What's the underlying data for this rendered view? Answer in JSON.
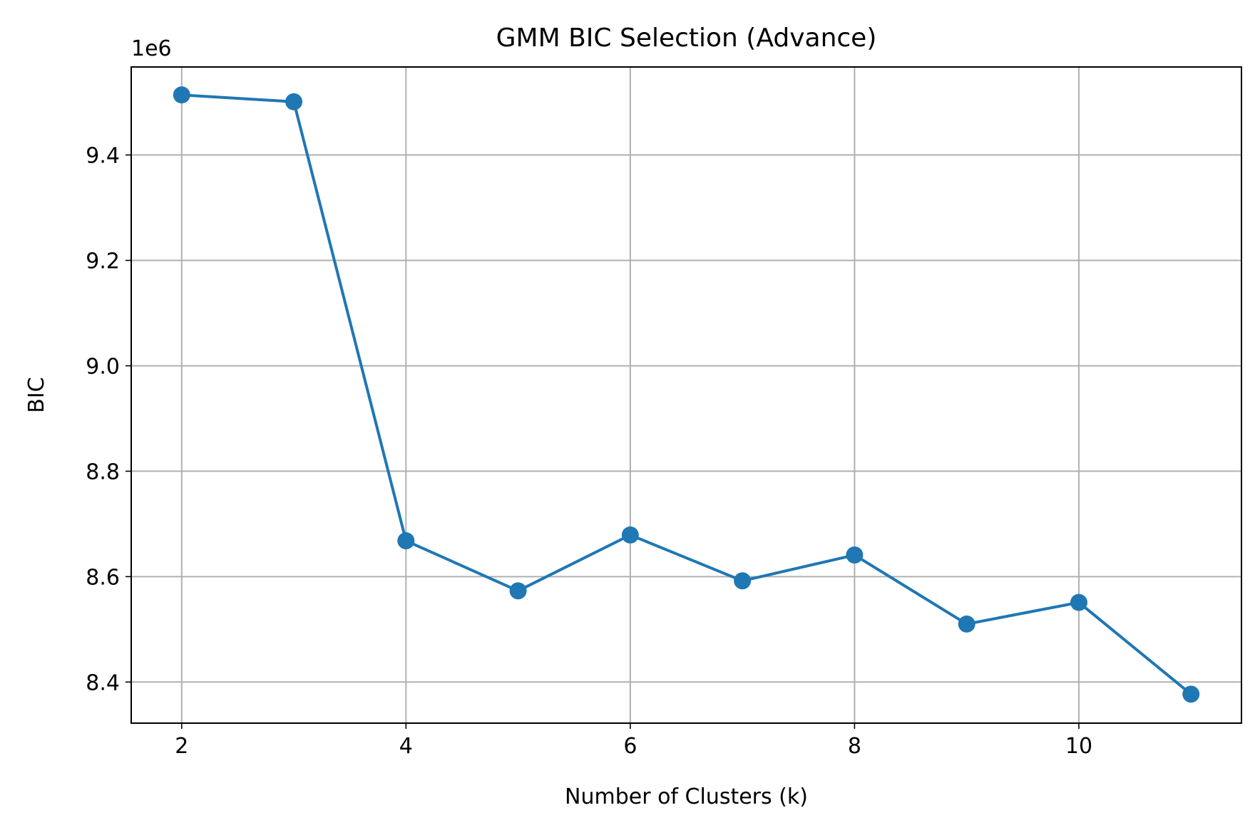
{
  "chart_data": {
    "type": "line",
    "title": "GMM BIC Selection (Advance)",
    "xlabel": "Number of Clusters (k)",
    "ylabel": "BIC",
    "y_offset_label": "1e6",
    "x_ticks": [
      2,
      4,
      6,
      8,
      10
    ],
    "x_tick_labels": [
      "2",
      "4",
      "6",
      "8",
      "10"
    ],
    "y_ticks": [
      8.4,
      8.6,
      8.8,
      9.0,
      9.2,
      9.4
    ],
    "y_tick_labels": [
      "8.4",
      "8.6",
      "8.8",
      "9.0",
      "9.2",
      "9.4"
    ],
    "xlim": [
      1.55,
      11.45
    ],
    "ylim": [
      8.322,
      9.567
    ],
    "grid": true,
    "series": [
      {
        "color": "#1f77b4",
        "marker": "circle",
        "x": [
          2,
          3,
          4,
          5,
          6,
          7,
          8,
          9,
          10,
          11
        ],
        "y": [
          9.514,
          9.501,
          8.668,
          8.573,
          8.679,
          8.592,
          8.641,
          8.51,
          8.551,
          8.377
        ]
      }
    ]
  }
}
